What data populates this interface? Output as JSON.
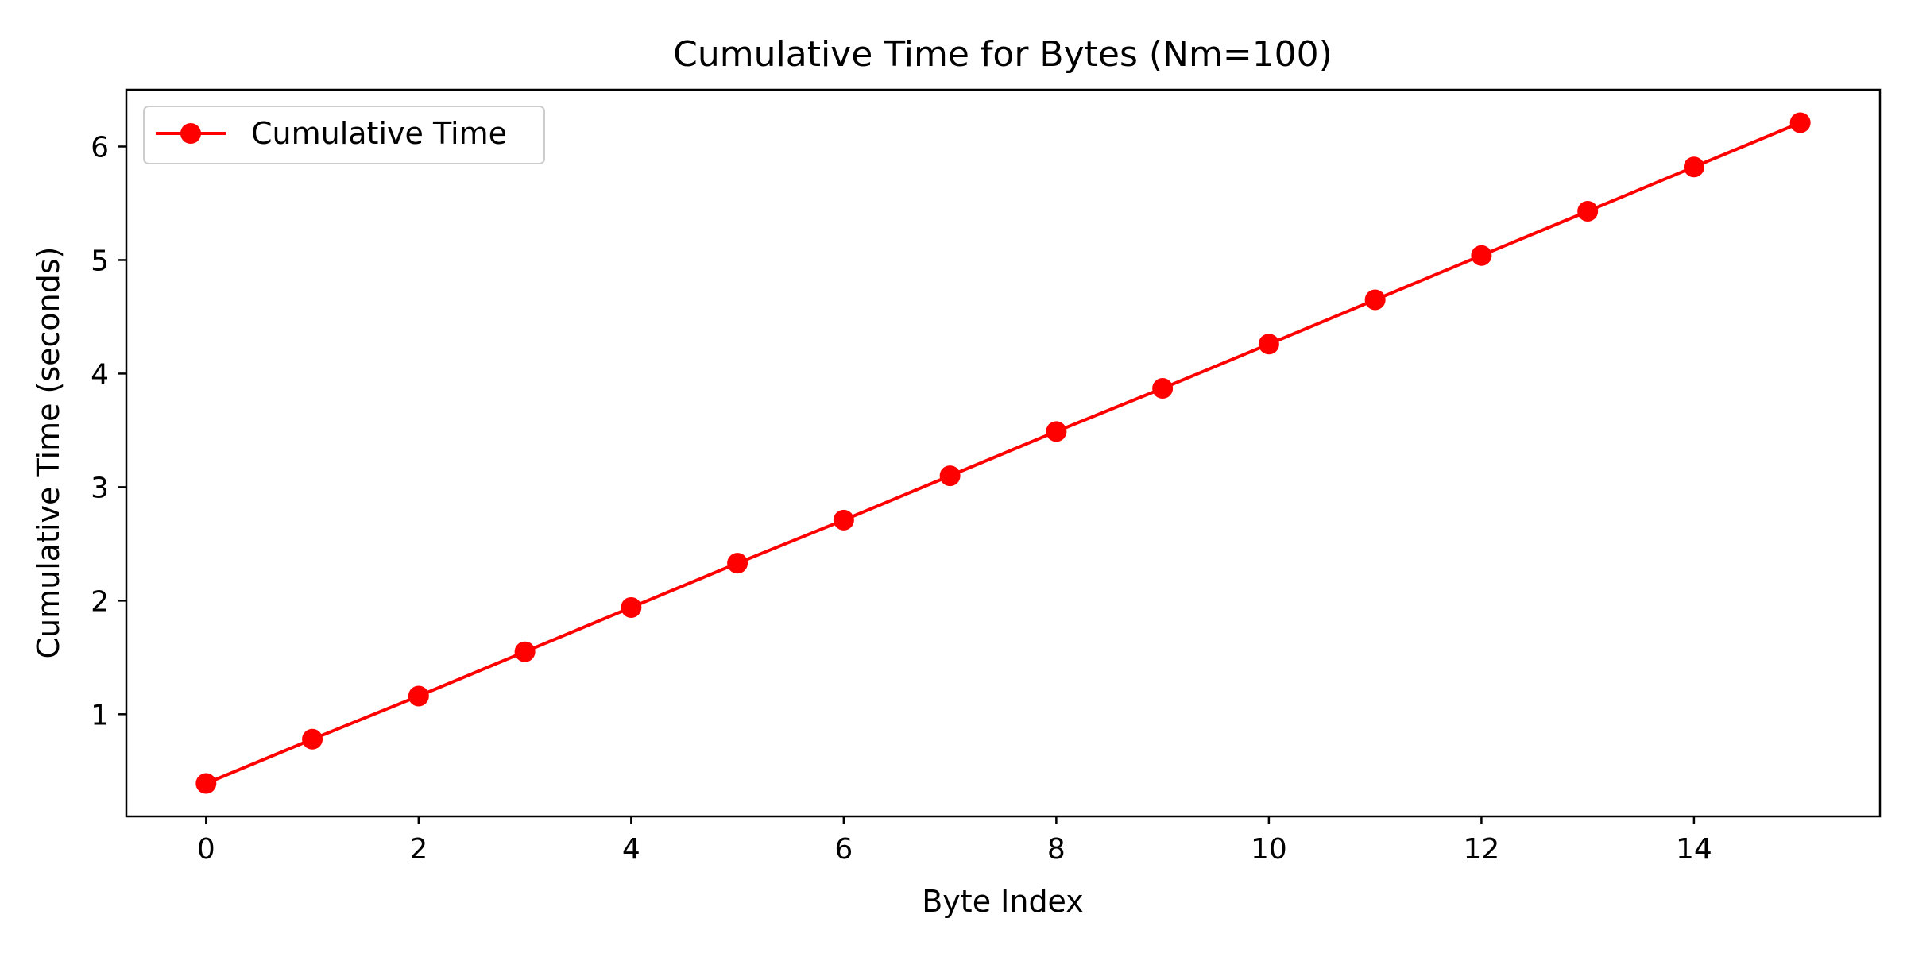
{
  "chart_data": {
    "type": "line",
    "title": "Cumulative Time for Bytes (Nm=100)",
    "xlabel": "Byte Index",
    "ylabel": "Cumulative Time (seconds)",
    "xlim": [
      -0.75,
      15.75
    ],
    "ylim": [
      0.1,
      6.5
    ],
    "x_ticks": [
      0,
      2,
      4,
      6,
      8,
      10,
      12,
      14
    ],
    "y_ticks": [
      1,
      2,
      3,
      4,
      5,
      6
    ],
    "grid": false,
    "legend_position": "top-left",
    "series": [
      {
        "name": "Cumulative Time",
        "color": "#ff0000",
        "marker": "circle",
        "x": [
          0,
          1,
          2,
          3,
          4,
          5,
          6,
          7,
          8,
          9,
          10,
          11,
          12,
          13,
          14,
          15
        ],
        "y": [
          0.39,
          0.78,
          1.16,
          1.55,
          1.94,
          2.33,
          2.71,
          3.1,
          3.49,
          3.87,
          4.26,
          4.65,
          5.04,
          5.43,
          5.82,
          6.21
        ]
      }
    ]
  }
}
